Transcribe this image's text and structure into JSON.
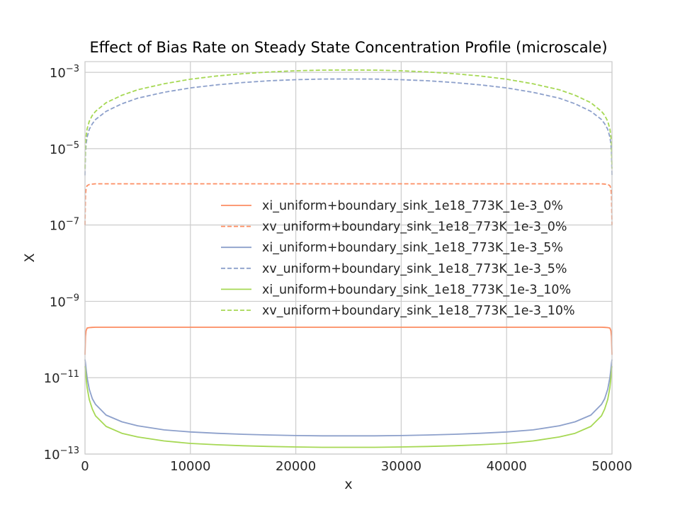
{
  "chart_data": {
    "type": "line",
    "title": "Effect of Bias Rate on Steady State Concentration Profile (microscale)",
    "xlabel": "x",
    "ylabel": "X",
    "xlim": [
      0,
      50000
    ],
    "ylim": [
      1e-13,
      0.002
    ],
    "yscale": "log",
    "grid": true,
    "legend_position": "center-right",
    "x_ticks": [
      0,
      10000,
      20000,
      30000,
      40000,
      50000
    ],
    "x_tick_labels": [
      "0",
      "10000",
      "20000",
      "30000",
      "40000",
      "50000"
    ],
    "y_ticks": [
      1e-13,
      1e-11,
      1e-09,
      1e-07,
      1e-05,
      0.001
    ],
    "y_tick_bases": [
      "10",
      "10",
      "10",
      "10",
      "10",
      "10"
    ],
    "y_tick_exponents": [
      "−13",
      "−11",
      "−9",
      "−7",
      "−5",
      "−3"
    ],
    "x": [
      0,
      50,
      100,
      200,
      400,
      700,
      1000,
      2000,
      3500,
      5000,
      7500,
      10000,
      12500,
      15000,
      17500,
      20000,
      22500,
      25000,
      27500,
      30000,
      32500,
      35000,
      37500,
      40000,
      42500,
      45000,
      46500,
      48000,
      49000,
      49300,
      49600,
      49800,
      49900,
      49950,
      50000
    ],
    "series": [
      {
        "name": "xi_uniform+boundary_sink_1e18_773K_1e-3_0%",
        "color": "#fc8d62",
        "dash": "solid",
        "values": [
          4e-11,
          1.2e-10,
          1.7e-10,
          2e-10,
          2.05e-10,
          2.08e-10,
          2.1e-10,
          2.1e-10,
          2.1e-10,
          2.1e-10,
          2.1e-10,
          2.1e-10,
          2.1e-10,
          2.1e-10,
          2.1e-10,
          2.1e-10,
          2.1e-10,
          2.1e-10,
          2.1e-10,
          2.1e-10,
          2.1e-10,
          2.1e-10,
          2.1e-10,
          2.1e-10,
          2.1e-10,
          2.1e-10,
          2.1e-10,
          2.1e-10,
          2.1e-10,
          2.08e-10,
          2.05e-10,
          2e-10,
          1.7e-10,
          1.2e-10,
          4e-11
        ]
      },
      {
        "name": "xv_uniform+boundary_sink_1e18_773K_1e-3_0%",
        "color": "#fc8d62",
        "dash": "dashed",
        "values": [
          1e-07,
          6e-07,
          9e-07,
          1.08e-06,
          1.15e-06,
          1.18e-06,
          1.2e-06,
          1.2e-06,
          1.2e-06,
          1.2e-06,
          1.2e-06,
          1.2e-06,
          1.2e-06,
          1.2e-06,
          1.2e-06,
          1.2e-06,
          1.2e-06,
          1.2e-06,
          1.2e-06,
          1.2e-06,
          1.2e-06,
          1.2e-06,
          1.2e-06,
          1.2e-06,
          1.2e-06,
          1.2e-06,
          1.2e-06,
          1.2e-06,
          1.2e-06,
          1.18e-06,
          1.15e-06,
          1.08e-06,
          9e-07,
          6e-07,
          1e-07
        ]
      },
      {
        "name": "xi_uniform+boundary_sink_1e18_773K_1e-3_5%",
        "color": "#8da0cb",
        "dash": "solid",
        "values": [
          3e-11,
          2.4e-11,
          1.7e-11,
          1e-11,
          5e-12,
          2.8e-12,
          2e-12,
          1.05e-12,
          7e-13,
          5.5e-13,
          4.3e-13,
          3.8e-13,
          3.5e-13,
          3.3e-13,
          3.15e-13,
          3.05e-13,
          3e-13,
          3e-13,
          3e-13,
          3.05e-13,
          3.15e-13,
          3.3e-13,
          3.5e-13,
          3.8e-13,
          4.3e-13,
          5.5e-13,
          7e-13,
          1.05e-12,
          2e-12,
          2.8e-12,
          5e-12,
          1e-11,
          1.7e-11,
          2.4e-11,
          3e-11
        ]
      },
      {
        "name": "xv_uniform+boundary_sink_1e18_773K_1e-3_5%",
        "color": "#8da0cb",
        "dash": "dashed",
        "values": [
          2e-06,
          8e-06,
          1.3e-05,
          2e-05,
          3.2e-05,
          4.5e-05,
          5.8e-05,
          9.5e-05,
          0.00015,
          0.00021,
          0.0003,
          0.00039,
          0.00047,
          0.00054,
          0.0006,
          0.00064,
          0.000665,
          0.00067,
          0.000665,
          0.00064,
          0.0006,
          0.00054,
          0.00047,
          0.00039,
          0.0003,
          0.00021,
          0.00015,
          9.5e-05,
          5.8e-05,
          4.5e-05,
          3.2e-05,
          2e-05,
          1.3e-05,
          8e-06,
          2e-06
        ]
      },
      {
        "name": "xi_uniform+boundary_sink_1e18_773K_1e-3_10%",
        "color": "#a6d854",
        "dash": "solid",
        "values": [
          2e-11,
          1.5e-11,
          1e-11,
          5.5e-12,
          2.7e-12,
          1.5e-12,
          1e-12,
          5.3e-13,
          3.5e-13,
          2.8e-13,
          2.2e-13,
          1.9e-13,
          1.75e-13,
          1.65e-13,
          1.58e-13,
          1.53e-13,
          1.5e-13,
          1.5e-13,
          1.5e-13,
          1.53e-13,
          1.58e-13,
          1.65e-13,
          1.75e-13,
          1.9e-13,
          2.2e-13,
          2.8e-13,
          3.5e-13,
          5.3e-13,
          1e-12,
          1.5e-12,
          2.7e-12,
          5.5e-12,
          1e-11,
          1.5e-11,
          2e-11
        ]
      },
      {
        "name": "xv_uniform+boundary_sink_1e18_773K_1e-3_10%",
        "color": "#a6d854",
        "dash": "dashed",
        "values": [
          3e-06,
          1.3e-05,
          2.1e-05,
          3.3e-05,
          5.2e-05,
          7.5e-05,
          9.5e-05,
          0.00016,
          0.00025,
          0.00035,
          0.0005,
          0.00066,
          0.0008,
          0.00092,
          0.00102,
          0.0011,
          0.00114,
          0.00115,
          0.00114,
          0.0011,
          0.00102,
          0.00092,
          0.0008,
          0.00066,
          0.0005,
          0.00035,
          0.00025,
          0.00016,
          9.5e-05,
          7.5e-05,
          5.2e-05,
          3.3e-05,
          2.1e-05,
          1.3e-05,
          3e-06
        ]
      }
    ]
  }
}
